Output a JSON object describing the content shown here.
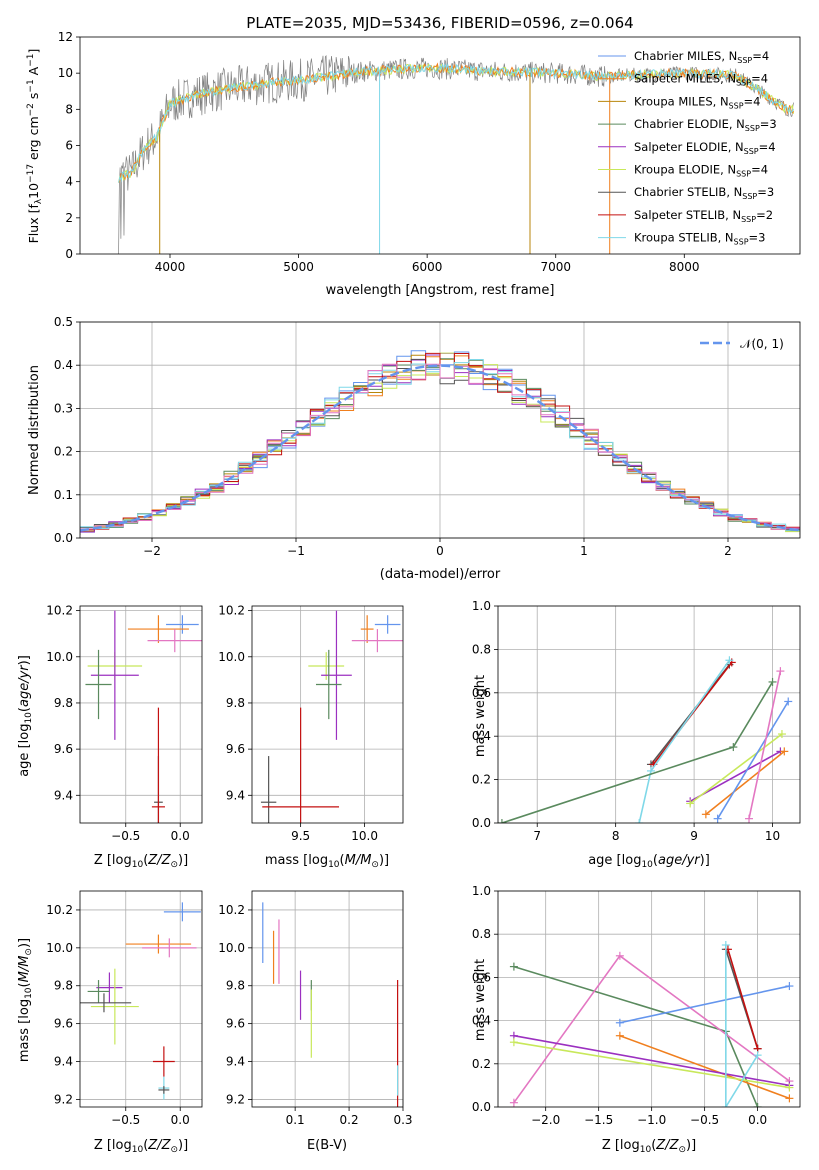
{
  "colors": {
    "chabrier_miles": "#6495ed",
    "salpeter_miles": "#f07f1e",
    "kroupa_miles": "#b8860b",
    "chabrier_elodie": "#5a8a5e",
    "salpeter_elodie": "#9b30c0",
    "kroupa_elodie": "#c8e85a",
    "chabrier_stelib": "#555555",
    "salpeter_stelib": "#c41010",
    "kroupa_stelib": "#7fd8e8",
    "pink": "#e377c2",
    "normal_curve": "#6495ed",
    "data": "#808080"
  },
  "chart_data": [
    {
      "type": "line",
      "title": "PLATE=2035, MJD=53436, FIBERID=0596, z=0.064",
      "xlabel": "wavelength [Angstrom, rest frame]",
      "ylabel": "Flux [f_λ10^-17 erg cm^-2 s^-1 A^-1]",
      "xlim": [
        3300,
        8900
      ],
      "ylim": [
        0,
        12
      ],
      "xticks": [
        "4000",
        "5000",
        "6000",
        "7000",
        "8000"
      ],
      "yticks": [
        "0",
        "2",
        "4",
        "6",
        "8",
        "10",
        "12"
      ],
      "legend_position": "right",
      "legend": [
        "Chabrier MILES, N_SSP=4",
        "Salpeter MILES, N_SSP=4",
        "Kroupa MILES, N_SSP=4",
        "Chabrier ELODIE, N_SSP=3",
        "Salpeter ELODIE, N_SSP=4",
        "Kroupa ELODIE, N_SSP=4",
        "Chabrier STELIB, N_SSP=3",
        "Salpeter STELIB, N_SSP=2",
        "Kroupa STELIB, N_SSP=3"
      ],
      "continuum": {
        "x": [
          3600,
          3700,
          3800,
          3900,
          4000,
          4200,
          4500,
          4800,
          5000,
          5500,
          6000,
          6500,
          7000,
          7400,
          7600,
          8000,
          8400,
          8800
        ],
        "y": [
          4.2,
          4.5,
          5.8,
          6.5,
          8.3,
          8.8,
          9.2,
          9.5,
          9.6,
          10.1,
          10.3,
          10.1,
          10.0,
          9.8,
          9.9,
          10.0,
          9.9,
          8.0
        ]
      }
    },
    {
      "type": "bar",
      "xlabel": "(data-model)/error",
      "ylabel": "Normed distribution",
      "xlim": [
        -2.5,
        2.5
      ],
      "ylim": [
        0,
        0.5
      ],
      "xticks": [
        "−2",
        "−1",
        "0",
        "1",
        "2"
      ],
      "yticks": [
        "0.0",
        "0.1",
        "0.2",
        "0.3",
        "0.4",
        "0.5"
      ],
      "legend": [
        "𝒩(0, 1)"
      ],
      "legend_position": "upper right",
      "note": "histograms of 9 models approximately following standard normal"
    },
    {
      "type": "scatter",
      "xlabel": "Z [log10(Z/Z⊙)]",
      "ylabel": "age [log10(age/yr)]",
      "xlim": [
        -0.92,
        0.2
      ],
      "ylim": [
        9.28,
        10.22
      ],
      "xticks": [
        "−0.5",
        "0.0"
      ],
      "yticks": [
        "9.4",
        "9.6",
        "9.8",
        "10.0",
        "10.2"
      ],
      "points": [
        {
          "x": 0.02,
          "y": 10.14,
          "xerr": 0.15,
          "yerr": 0.04,
          "c": "chabrier_miles"
        },
        {
          "x": -0.2,
          "y": 10.12,
          "xerr": 0.28,
          "yerr": 0.06,
          "c": "salpeter_miles"
        },
        {
          "x": -0.05,
          "y": 10.07,
          "xerr": 0.25,
          "yerr": 0.05,
          "c": "pink"
        },
        {
          "x": -0.6,
          "y": 9.96,
          "xerr": 0.25,
          "yerr": 0.06,
          "c": "kroupa_elodie"
        },
        {
          "x": -0.6,
          "y": 9.92,
          "xerr": 0.22,
          "yerr": 0.28,
          "c": "salpeter_elodie"
        },
        {
          "x": -0.75,
          "y": 9.88,
          "xerr": 0.12,
          "yerr": 0.15,
          "c": "chabrier_elodie"
        },
        {
          "x": -0.2,
          "y": 9.37,
          "xerr": 0.04,
          "yerr": 0.2,
          "c": "chabrier_stelib"
        },
        {
          "x": -0.2,
          "y": 9.35,
          "xerr": 0.06,
          "yerr": 0.43,
          "c": "salpeter_stelib"
        }
      ]
    },
    {
      "type": "scatter",
      "xlabel": "mass [log10(M/M⊙)]",
      "ylabel": "",
      "xlim": [
        9.12,
        10.3
      ],
      "ylim": [
        9.28,
        10.22
      ],
      "xticks": [
        "9.5",
        "10.0"
      ],
      "yticks": [
        "9.4",
        "9.6",
        "9.8",
        "10.0",
        "10.2"
      ],
      "points": [
        {
          "x": 10.18,
          "y": 10.14,
          "xerr": 0.1,
          "yerr": 0.04,
          "c": "chabrier_miles"
        },
        {
          "x": 10.02,
          "y": 10.12,
          "xerr": 0.05,
          "yerr": 0.06,
          "c": "salpeter_miles"
        },
        {
          "x": 10.1,
          "y": 10.07,
          "xerr": 0.2,
          "yerr": 0.05,
          "c": "pink"
        },
        {
          "x": 9.7,
          "y": 9.96,
          "xerr": 0.14,
          "yerr": 0.06,
          "c": "kroupa_elodie"
        },
        {
          "x": 9.78,
          "y": 9.92,
          "xerr": 0.12,
          "yerr": 0.28,
          "c": "salpeter_elodie"
        },
        {
          "x": 9.72,
          "y": 9.88,
          "xerr": 0.1,
          "yerr": 0.15,
          "c": "chabrier_elodie"
        },
        {
          "x": 9.25,
          "y": 9.37,
          "xerr": 0.06,
          "yerr": 0.2,
          "c": "chabrier_stelib"
        },
        {
          "x": 9.5,
          "y": 9.35,
          "xerr": 0.3,
          "yerr": 0.43,
          "c": "salpeter_stelib"
        }
      ]
    },
    {
      "type": "line",
      "xlabel": "age [log10(age/yr)]",
      "ylabel": "mass weight",
      "xlim": [
        6.5,
        10.35
      ],
      "ylim": [
        0,
        1
      ],
      "xticks": [
        "7",
        "8",
        "9",
        "10"
      ],
      "yticks": [
        "0.0",
        "0.2",
        "0.4",
        "0.6",
        "0.8",
        "1.0"
      ],
      "series": [
        {
          "c": "chabrier_stelib",
          "x": [
            8.45,
            9.45
          ],
          "y": [
            0.27,
            0.73
          ]
        },
        {
          "c": "salpeter_stelib",
          "x": [
            8.48,
            9.48
          ],
          "y": [
            0.27,
            0.74
          ]
        },
        {
          "c": "kroupa_stelib",
          "x": [
            8.3,
            8.45,
            9.45
          ],
          "y": [
            0.0,
            0.24,
            0.75
          ]
        },
        {
          "c": "chabrier_elodie",
          "x": [
            6.55,
            9.5,
            10.0
          ],
          "y": [
            0.0,
            0.35,
            0.65
          ]
        },
        {
          "c": "salpeter_elodie",
          "x": [
            8.95,
            10.1
          ],
          "y": [
            0.1,
            0.33
          ]
        },
        {
          "c": "kroupa_elodie",
          "x": [
            8.95,
            10.12
          ],
          "y": [
            0.09,
            0.41
          ]
        },
        {
          "c": "salpeter_miles",
          "x": [
            9.15,
            10.15
          ],
          "y": [
            0.04,
            0.33
          ]
        },
        {
          "c": "chabrier_miles",
          "x": [
            9.3,
            10.2
          ],
          "y": [
            0.02,
            0.56
          ]
        },
        {
          "c": "pink",
          "x": [
            9.7,
            10.1
          ],
          "y": [
            0.02,
            0.7
          ]
        }
      ]
    },
    {
      "type": "scatter",
      "xlabel": "Z [log10(Z/Z⊙)]",
      "ylabel": "mass [log10(M/M⊙)]",
      "xlim": [
        -0.92,
        0.2
      ],
      "ylim": [
        9.16,
        10.3
      ],
      "xticks": [
        "−0.5",
        "0.0"
      ],
      "yticks": [
        "9.2",
        "9.4",
        "9.6",
        "9.8",
        "10.0",
        "10.2"
      ],
      "points": [
        {
          "x": 0.02,
          "y": 10.19,
          "xerr": 0.17,
          "yerr": 0.05,
          "c": "chabrier_miles"
        },
        {
          "x": -0.2,
          "y": 10.02,
          "xerr": 0.3,
          "yerr": 0.05,
          "c": "salpeter_miles"
        },
        {
          "x": -0.1,
          "y": 10.0,
          "xerr": 0.25,
          "yerr": 0.05,
          "c": "pink"
        },
        {
          "x": -0.65,
          "y": 9.79,
          "xerr": 0.12,
          "yerr": 0.08,
          "c": "salpeter_elodie"
        },
        {
          "x": -0.75,
          "y": 9.77,
          "xerr": 0.1,
          "yerr": 0.06,
          "c": "chabrier_elodie"
        },
        {
          "x": -0.6,
          "y": 9.69,
          "xerr": 0.22,
          "yerr": 0.2,
          "c": "kroupa_elodie"
        },
        {
          "x": -0.7,
          "y": 9.71,
          "xerr": 0.25,
          "yerr": 0.05,
          "c": "chabrier_stelib"
        },
        {
          "x": -0.15,
          "y": 9.4,
          "xerr": 0.1,
          "yerr": 0.08,
          "c": "salpeter_stelib"
        },
        {
          "x": -0.15,
          "y": 9.26,
          "xerr": 0.05,
          "yerr": 0.06,
          "c": "kroupa_stelib"
        },
        {
          "x": -0.15,
          "y": 9.25,
          "xerr": 0.05,
          "yerr": 0.02,
          "c": "chabrier_stelib"
        }
      ]
    },
    {
      "type": "scatter",
      "xlabel": "E(B-V)",
      "ylabel": "",
      "xlim": [
        0.02,
        0.3
      ],
      "ylim": [
        9.16,
        10.3
      ],
      "xticks": [
        "0.1",
        "0.2",
        "0.3"
      ],
      "yticks": [
        "9.2",
        "9.4",
        "9.6",
        "9.8",
        "10.0",
        "10.2"
      ],
      "points": [
        {
          "x": 0.04,
          "y": 10.08,
          "xerr": 0.0,
          "yerr": 0.16,
          "c": "chabrier_miles"
        },
        {
          "x": 0.06,
          "y": 9.95,
          "xerr": 0.0,
          "yerr": 0.14,
          "c": "salpeter_miles"
        },
        {
          "x": 0.07,
          "y": 9.98,
          "xerr": 0.0,
          "yerr": 0.17,
          "c": "pink"
        },
        {
          "x": 0.11,
          "y": 9.75,
          "xerr": 0.0,
          "yerr": 0.13,
          "c": "salpeter_elodie"
        },
        {
          "x": 0.13,
          "y": 9.75,
          "xerr": 0.0,
          "yerr": 0.08,
          "c": "chabrier_elodie"
        },
        {
          "x": 0.13,
          "y": 9.6,
          "xerr": 0.0,
          "yerr": 0.18,
          "c": "kroupa_elodie"
        },
        {
          "x": 0.29,
          "y": 9.4,
          "xerr": 0.0,
          "yerr": 0.43,
          "c": "salpeter_stelib"
        },
        {
          "x": 0.29,
          "y": 9.3,
          "xerr": 0.0,
          "yerr": 0.08,
          "c": "kroupa_stelib"
        }
      ]
    },
    {
      "type": "line",
      "xlabel": "Z [log10(Z/Z⊙)]",
      "ylabel": "mass weight",
      "xlim": [
        -2.45,
        0.4
      ],
      "ylim": [
        0,
        1
      ],
      "xticks": [
        "−2.0",
        "−1.5",
        "−1.0",
        "−0.5",
        "0.0"
      ],
      "yticks": [
        "0.0",
        "0.2",
        "0.4",
        "0.6",
        "0.8",
        "1.0"
      ],
      "series": [
        {
          "c": "chabrier_elodie",
          "x": [
            -2.3,
            -0.3,
            0.0
          ],
          "y": [
            0.65,
            0.35,
            0.0
          ]
        },
        {
          "c": "pink",
          "x": [
            -2.3,
            -1.3,
            0.3
          ],
          "y": [
            0.02,
            0.7,
            0.12
          ]
        },
        {
          "c": "chabrier_miles",
          "x": [
            -1.3,
            0.3
          ],
          "y": [
            0.39,
            0.56
          ]
        },
        {
          "c": "salpeter_miles",
          "x": [
            -1.3,
            0.3
          ],
          "y": [
            0.33,
            0.04
          ]
        },
        {
          "c": "salpeter_elodie",
          "x": [
            -2.3,
            0.3
          ],
          "y": [
            0.33,
            0.1
          ]
        },
        {
          "c": "kroupa_elodie",
          "x": [
            -2.3,
            0.3
          ],
          "y": [
            0.3,
            0.09
          ]
        },
        {
          "c": "chabrier_stelib",
          "x": [
            -0.3,
            0.0
          ],
          "y": [
            0.73,
            0.27
          ]
        },
        {
          "c": "salpeter_stelib",
          "x": [
            -0.28,
            0.0
          ],
          "y": [
            0.73,
            0.27
          ]
        },
        {
          "c": "kroupa_stelib",
          "x": [
            -0.3,
            -0.3,
            0.0
          ],
          "y": [
            0.75,
            0.0,
            0.24
          ]
        }
      ]
    }
  ]
}
